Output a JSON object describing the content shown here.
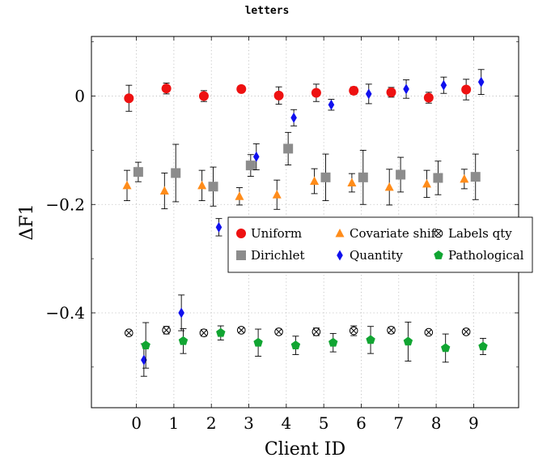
{
  "chart_data": {
    "type": "scatter",
    "title": "letters",
    "xlabel": "Client ID",
    "ylabel": "ΔF1",
    "xlim": [
      -1.2,
      10.2
    ],
    "ylim": [
      -0.575,
      0.11
    ],
    "xticks": [
      0,
      1,
      2,
      3,
      4,
      5,
      6,
      7,
      8,
      9
    ],
    "yticks": [
      0,
      -0.2,
      -0.4
    ],
    "ytick_labels": [
      "0",
      "−0.2",
      "−0.4"
    ],
    "grid": "dotted",
    "legend_position": "center-right",
    "legend_columns": 3,
    "series": [
      {
        "name": "Uniform",
        "marker": "circle",
        "color": "#ee1111",
        "offset": -0.2,
        "x": [
          0,
          1,
          2,
          3,
          4,
          5,
          6,
          7,
          8,
          9
        ],
        "y": [
          -0.004,
          0.014,
          0.0,
          0.013,
          0.001,
          0.006,
          0.01,
          0.007,
          -0.003,
          0.012
        ],
        "err": [
          0.024,
          0.01,
          0.01,
          0.006,
          0.016,
          0.016,
          0.007,
          0.009,
          0.01,
          0.019
        ]
      },
      {
        "name": "Covariate shift",
        "marker": "triangle",
        "color": "#ff8c1a",
        "offset": -0.25,
        "x": [
          0,
          1,
          2,
          3,
          4,
          5,
          6,
          7,
          8,
          9
        ],
        "y": [
          -0.165,
          -0.175,
          -0.165,
          -0.185,
          -0.182,
          -0.157,
          -0.16,
          -0.168,
          -0.162,
          -0.153
        ],
        "err": [
          0.028,
          0.033,
          0.028,
          0.016,
          0.027,
          0.023,
          0.017,
          0.033,
          0.025,
          0.018
        ]
      },
      {
        "name": "Labels qty",
        "marker": "otimes",
        "color": "#000000",
        "offset": -0.2,
        "x": [
          0,
          1,
          2,
          3,
          4,
          5,
          6,
          7,
          8,
          9
        ],
        "y": [
          -0.437,
          -0.432,
          -0.437,
          -0.432,
          -0.435,
          -0.435,
          -0.433,
          -0.432,
          -0.436,
          -0.435
        ],
        "err": [
          0.004,
          0.007,
          0.006,
          0.005,
          0.005,
          0.007,
          0.009,
          0.006,
          0.004,
          0.005
        ]
      },
      {
        "name": "Dirichlet",
        "marker": "square",
        "color": "#8c8c8c",
        "offset": 0.05,
        "x": [
          0,
          1,
          2,
          3,
          4,
          5,
          6,
          7,
          8,
          9
        ],
        "y": [
          -0.14,
          -0.142,
          -0.167,
          -0.128,
          -0.097,
          -0.15,
          -0.15,
          -0.145,
          -0.151,
          -0.149
        ],
        "err": [
          0.018,
          0.053,
          0.036,
          0.02,
          0.03,
          0.043,
          0.05,
          0.032,
          0.031,
          0.042
        ]
      },
      {
        "name": "Quantity",
        "marker": "diamond",
        "color": "#1010ee",
        "offset": 0.2,
        "x": [
          0,
          1,
          2,
          3,
          4,
          5,
          6,
          7,
          8,
          9
        ],
        "y": [
          -0.487,
          -0.4,
          -0.242,
          -0.112,
          -0.04,
          -0.016,
          0.004,
          0.013,
          0.02,
          0.026
        ],
        "err": [
          0.03,
          0.033,
          0.016,
          0.024,
          0.015,
          0.01,
          0.018,
          0.017,
          0.015,
          0.023
        ]
      },
      {
        "name": "Pathological",
        "marker": "pentagon",
        "color": "#11a532",
        "offset": 0.25,
        "x": [
          0,
          1,
          2,
          3,
          4,
          5,
          6,
          7,
          8,
          9
        ],
        "y": [
          -0.46,
          -0.452,
          -0.437,
          -0.455,
          -0.46,
          -0.455,
          -0.45,
          -0.453,
          -0.465,
          -0.462
        ],
        "err": [
          0.042,
          0.023,
          0.013,
          0.025,
          0.017,
          0.017,
          0.025,
          0.036,
          0.026,
          0.015
        ]
      }
    ]
  }
}
